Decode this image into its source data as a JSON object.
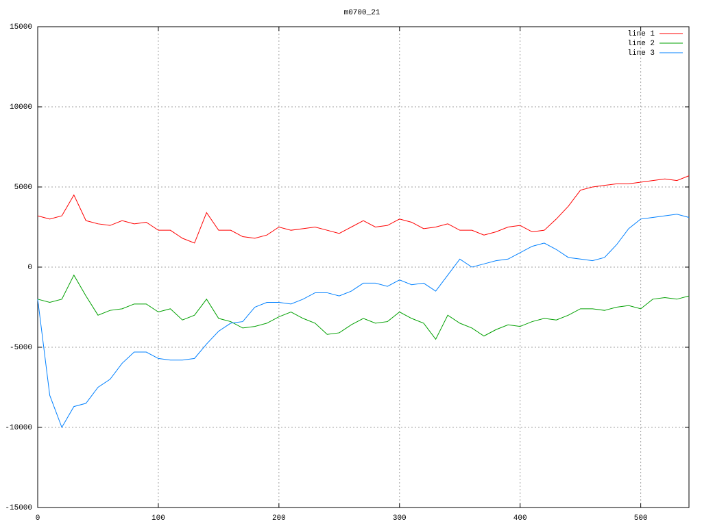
{
  "chart_data": {
    "type": "line",
    "title": "m0700_21",
    "x": [
      0,
      10,
      20,
      30,
      40,
      50,
      60,
      70,
      80,
      90,
      100,
      110,
      120,
      130,
      140,
      150,
      160,
      170,
      180,
      190,
      200,
      210,
      220,
      230,
      240,
      250,
      260,
      270,
      280,
      290,
      300,
      310,
      320,
      330,
      340,
      350,
      360,
      370,
      380,
      390,
      400,
      410,
      420,
      430,
      440,
      450,
      460,
      470,
      480,
      490,
      500,
      510,
      520,
      530,
      540
    ],
    "series": [
      {
        "name": "line 1",
        "color": "#ff0000",
        "values": [
          3200,
          3000,
          3200,
          4500,
          2900,
          2700,
          2600,
          2900,
          2700,
          2800,
          2300,
          2300,
          1800,
          1500,
          3400,
          2300,
          2300,
          1900,
          1800,
          2000,
          2500,
          2300,
          2400,
          2500,
          2300,
          2100,
          2500,
          2900,
          2500,
          2600,
          3000,
          2800,
          2400,
          2500,
          2700,
          2300,
          2300,
          2000,
          2200,
          2500,
          2600,
          2200,
          2300,
          3000,
          3800,
          4800,
          5000,
          5100,
          5200,
          5200,
          5300,
          5400,
          5500,
          5400,
          5700
        ]
      },
      {
        "name": "line 2",
        "color": "#00a000",
        "values": [
          -2000,
          -2200,
          -2000,
          -500,
          -1800,
          -3000,
          -2700,
          -2600,
          -2300,
          -2300,
          -2800,
          -2600,
          -3300,
          -3000,
          -2000,
          -3200,
          -3400,
          -3800,
          -3700,
          -3500,
          -3100,
          -2800,
          -3200,
          -3500,
          -4200,
          -4100,
          -3600,
          -3200,
          -3500,
          -3400,
          -2800,
          -3200,
          -3500,
          -4500,
          -3000,
          -3500,
          -3800,
          -4300,
          -3900,
          -3600,
          -3700,
          -3400,
          -3200,
          -3300,
          -3000,
          -2600,
          -2600,
          -2700,
          -2500,
          -2400,
          -2600,
          -2000,
          -1900,
          -2000,
          -1800
        ]
      },
      {
        "name": "line 3",
        "color": "#0080ff",
        "values": [
          -2000,
          -8000,
          -10000,
          -8700,
          -8500,
          -7500,
          -7000,
          -6000,
          -5300,
          -5300,
          -5700,
          -5800,
          -5800,
          -5700,
          -4800,
          -4000,
          -3500,
          -3400,
          -2500,
          -2200,
          -2200,
          -2300,
          -2000,
          -1600,
          -1600,
          -1800,
          -1500,
          -1000,
          -1000,
          -1200,
          -800,
          -1100,
          -1000,
          -1500,
          -500,
          500,
          0,
          200,
          400,
          500,
          900,
          1300,
          1500,
          1100,
          600,
          500,
          400,
          600,
          1400,
          2400,
          3000,
          3100,
          3200,
          3300,
          3100
        ]
      }
    ],
    "xlim": [
      0,
      540
    ],
    "xticks": [
      0,
      100,
      200,
      300,
      400,
      500
    ],
    "ylim": [
      -15000,
      15000
    ],
    "yticks": [
      -15000,
      -10000,
      -5000,
      0,
      5000,
      10000,
      15000
    ],
    "grid": true,
    "legend": "top-right"
  }
}
